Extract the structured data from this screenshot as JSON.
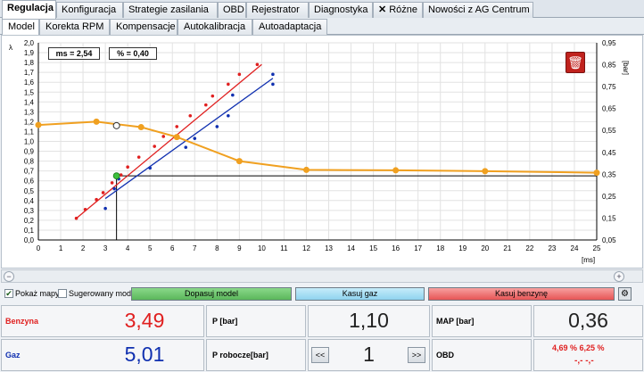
{
  "tabs_main": [
    "Regulacja",
    "Konfiguracja",
    "Strategie zasilania",
    "OBD",
    "Rejestrator",
    "Diagnostyka",
    "Różne",
    "Nowości z AG Centrum"
  ],
  "tabs_sub": [
    "Model",
    "Korekta RPM",
    "Kompensacje",
    "Autokalibracja",
    "Autoadaptacja"
  ],
  "chart": {
    "left_axis_symbol": "λ",
    "right_axis_unit": "[bar]",
    "x_axis_unit": "[ms]",
    "info_ms": "ms = 2,54",
    "info_pct": "% = 0,40"
  },
  "chart_data": {
    "type": "scatter",
    "xlim": [
      0,
      25
    ],
    "ylim_left": [
      0,
      2.0
    ],
    "ylim_right": [
      0.05,
      0.95
    ],
    "x_ticks": [
      "0",
      "1",
      "2",
      "3",
      "4",
      "5",
      "6",
      "7",
      "8",
      "9",
      "10",
      "11",
      "12",
      "13",
      "14",
      "15",
      "16",
      "17",
      "18",
      "19",
      "20",
      "21",
      "22",
      "23",
      "24",
      "25"
    ],
    "y_left_ticks": [
      "0,0",
      "0,1",
      "0,2",
      "0,3",
      "0,4",
      "0,5",
      "0,6",
      "0,7",
      "0,8",
      "0,9",
      "1,0",
      "1,1",
      "1,2",
      "1,3",
      "1,4",
      "1,5",
      "1,6",
      "1,7",
      "1,8",
      "1,9",
      "2,0"
    ],
    "y_right_ticks": [
      "0,05",
      "0,15",
      "0,25",
      "0,35",
      "0,45",
      "0,55",
      "0,65",
      "0,75",
      "0,85",
      "0,95"
    ],
    "series": [
      {
        "color": "#e02020",
        "points": [
          [
            1.7,
            0.22
          ],
          [
            2.1,
            0.31
          ],
          [
            2.6,
            0.41
          ],
          [
            2.9,
            0.48
          ],
          [
            3.3,
            0.58
          ],
          [
            3.7,
            0.66
          ],
          [
            4.0,
            0.74
          ],
          [
            4.5,
            0.84
          ],
          [
            5.2,
            0.95
          ],
          [
            5.6,
            1.05
          ],
          [
            6.2,
            1.15
          ],
          [
            6.8,
            1.26
          ],
          [
            7.5,
            1.37
          ],
          [
            7.8,
            1.46
          ],
          [
            8.5,
            1.58
          ],
          [
            9.0,
            1.68
          ],
          [
            9.8,
            1.78
          ]
        ],
        "fit": [
          [
            1.7,
            0.22
          ],
          [
            10.0,
            1.78
          ]
        ]
      },
      {
        "color": "#1030b0",
        "points": [
          [
            3.0,
            0.32
          ],
          [
            3.4,
            0.52
          ],
          [
            3.6,
            0.62
          ],
          [
            5.0,
            0.73
          ],
          [
            6.6,
            0.94
          ],
          [
            7.0,
            1.03
          ],
          [
            8.0,
            1.15
          ],
          [
            8.5,
            1.26
          ],
          [
            8.7,
            1.47
          ],
          [
            10.5,
            1.58
          ],
          [
            10.5,
            1.68
          ]
        ],
        "fit": [
          [
            3.0,
            0.42
          ],
          [
            10.5,
            1.64
          ]
        ]
      },
      {
        "name": "MAP",
        "color": "#f0a020",
        "axis": "right",
        "points": [
          [
            0.0,
            0.575
          ],
          [
            2.6,
            0.59
          ],
          [
            4.6,
            0.565
          ],
          [
            6.2,
            0.52
          ],
          [
            9.0,
            0.41
          ],
          [
            12.0,
            0.37
          ],
          [
            16.0,
            0.368
          ],
          [
            20.0,
            0.364
          ],
          [
            25.0,
            0.357
          ]
        ]
      }
    ],
    "marker_point": [
      3.5,
      0.65
    ],
    "hollow_point": [
      3.5,
      0.58
    ],
    "crosshair_y": 0.65
  },
  "controls": {
    "show_maps": "Pokaż mapy",
    "suggested_model": "Sugerowany model",
    "fit_model": "Dopasuj model",
    "delete_gas": "Kasuj gaz",
    "delete_petrol": "Kasuj benzynę"
  },
  "values": {
    "petrol_label": "Benzyna",
    "petrol_value": "3,49",
    "gas_label": "Gaz",
    "gas_value": "5,01",
    "p_label": "P [bar]",
    "p_value": "1,10",
    "p_work_label": "P robocze[bar]",
    "p_work_value": "1",
    "prev_btn": "<<",
    "next_btn": ">>",
    "map_label": "MAP [bar]",
    "map_value": "0,36",
    "obd_label": "OBD",
    "obd_pct": "4,69 % 6,25 %",
    "obd_extra": "-,- -,-"
  },
  "colors": {
    "petrol": "#e02020",
    "gas": "#1030b0",
    "map": "#f0a020"
  }
}
